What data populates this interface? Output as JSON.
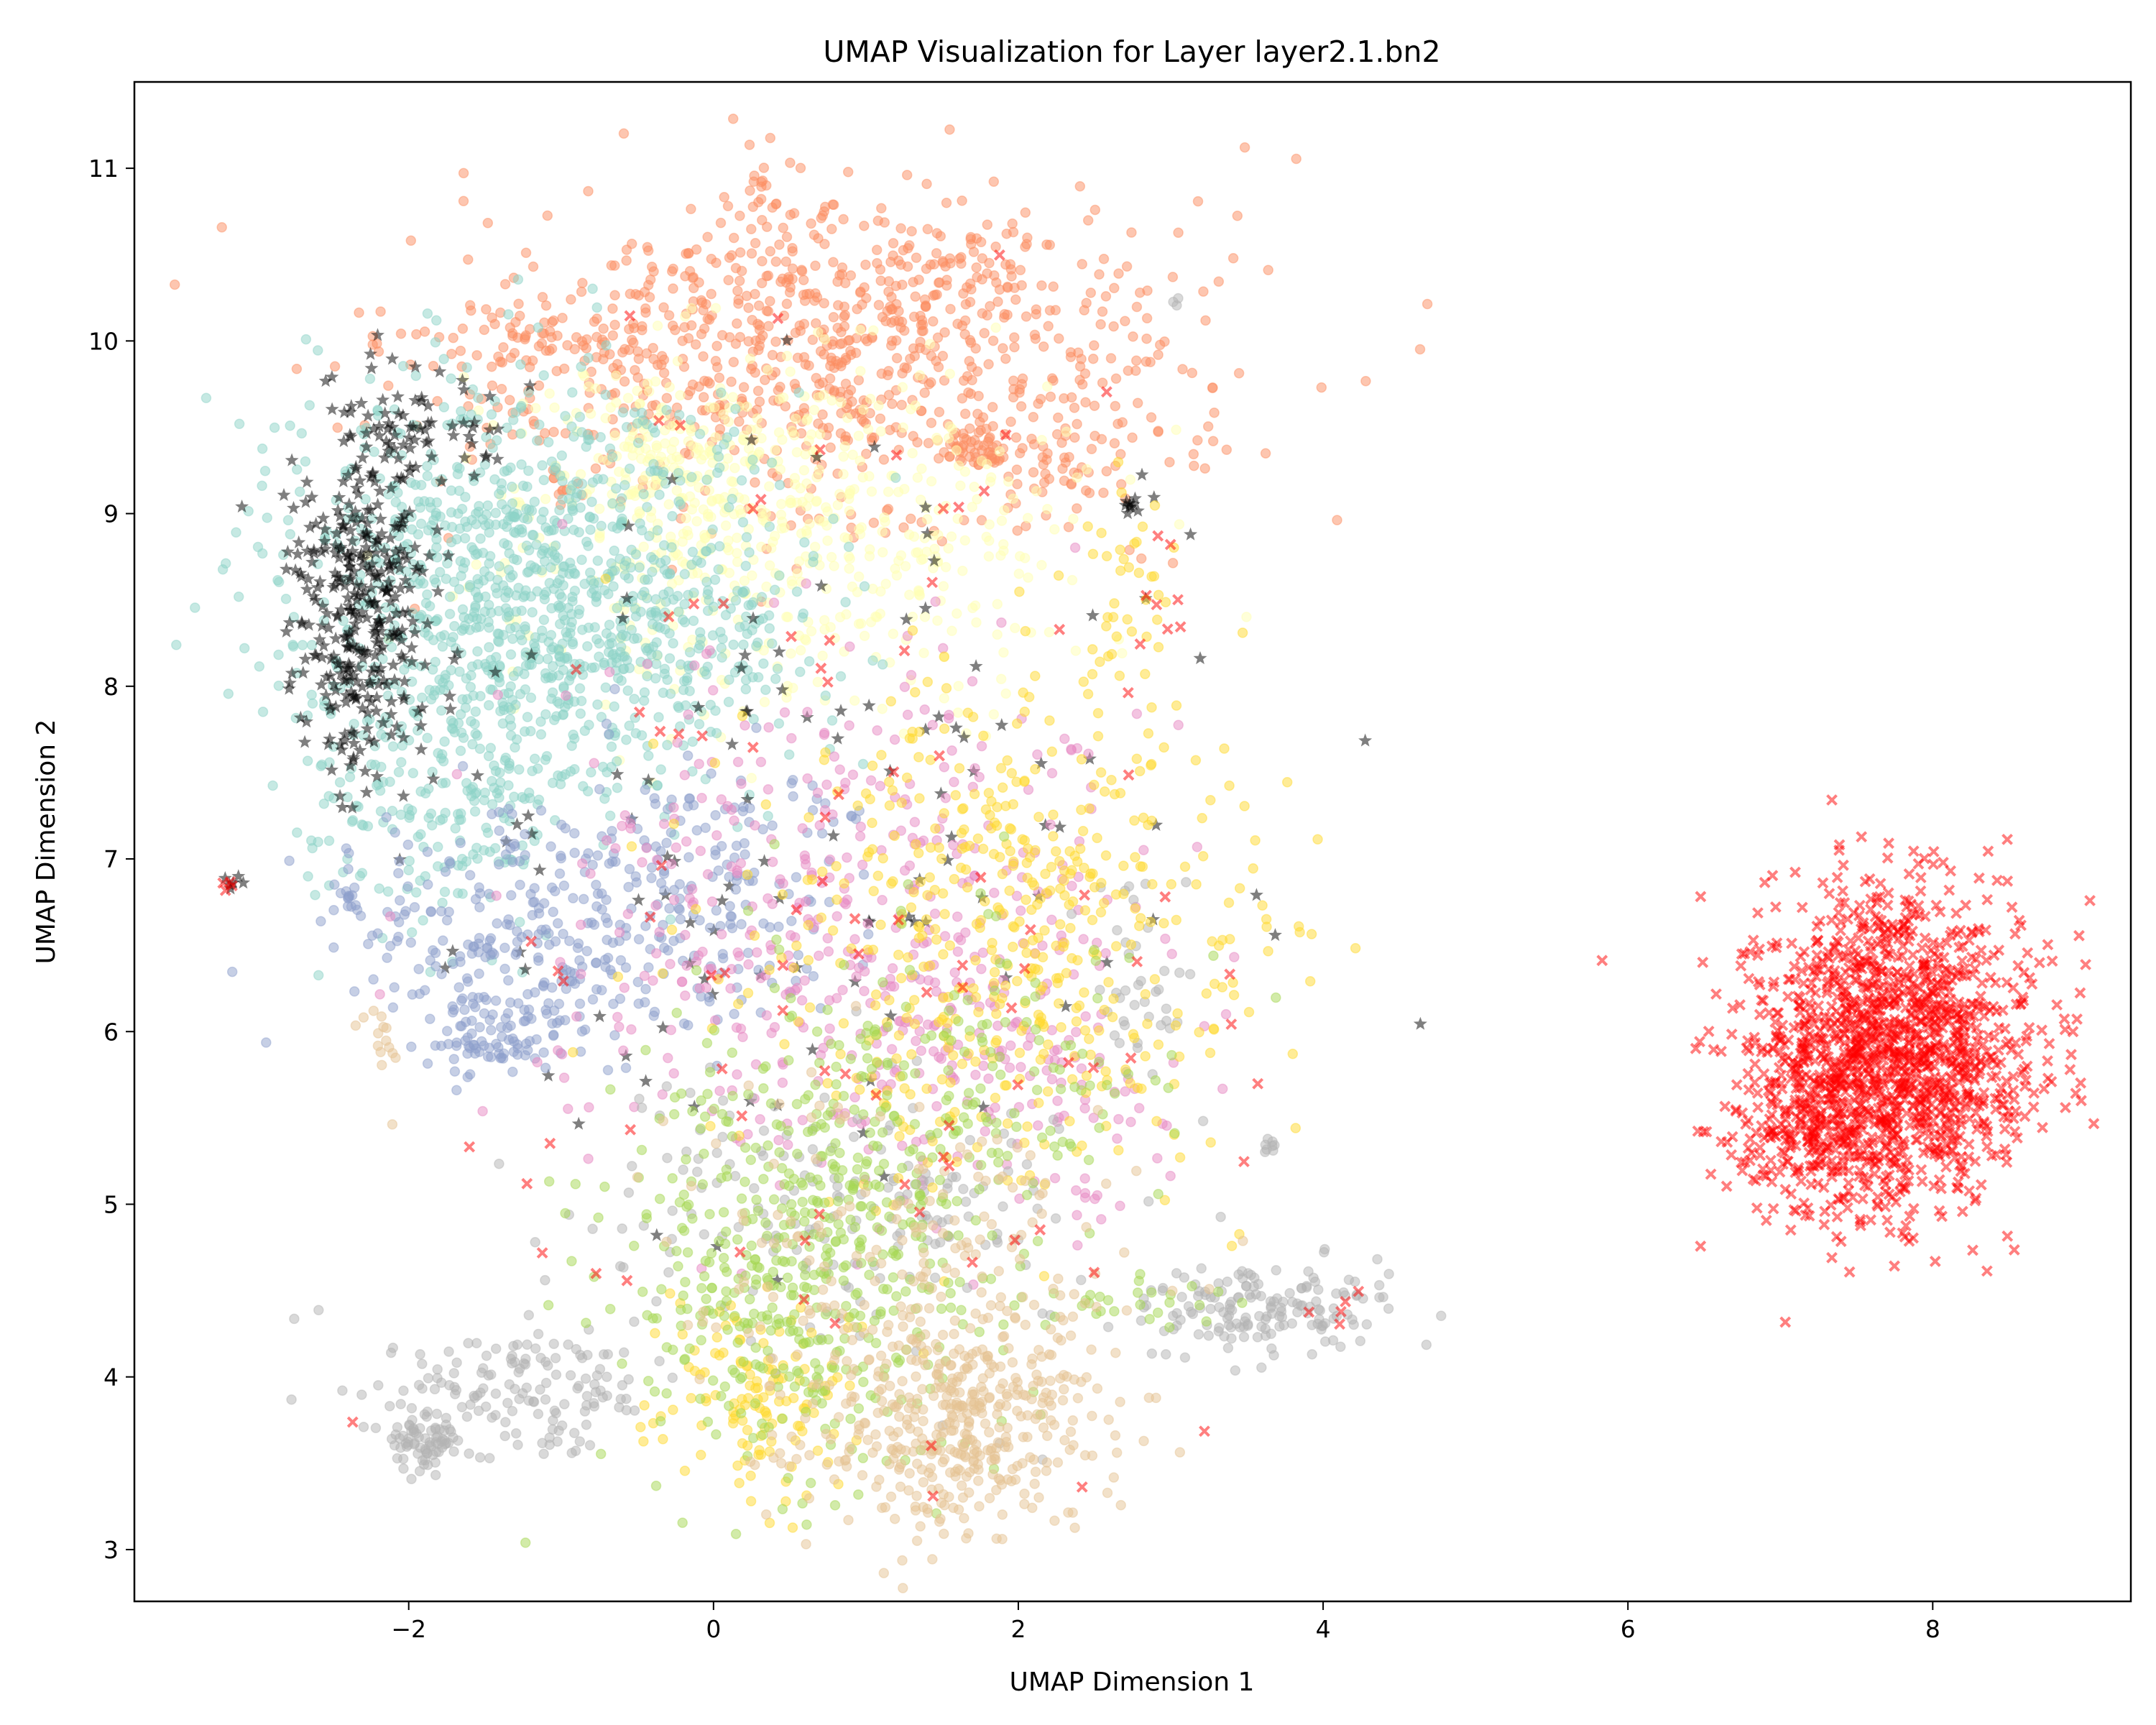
{
  "chart_data": {
    "type": "scatter",
    "title": "UMAP Visualization for Layer layer2.1.bn2",
    "xlabel": "UMAP Dimension 1",
    "ylabel": "UMAP Dimension 2",
    "xlim": [
      -3.8,
      9.3
    ],
    "ylim": [
      2.7,
      11.5
    ],
    "xticks": [
      -2,
      0,
      2,
      4,
      6,
      8
    ],
    "yticks": [
      3,
      4,
      5,
      6,
      7,
      8,
      9,
      10,
      11
    ],
    "xtick_labels": [
      "−2",
      "0",
      "2",
      "4",
      "6",
      "8"
    ],
    "ytick_labels": [
      "3",
      "4",
      "5",
      "6",
      "7",
      "8",
      "9",
      "10",
      "11"
    ],
    "grid": false,
    "legend": "none",
    "marker_alpha": 0.5,
    "series": [
      {
        "color": "#fc8d62",
        "marker": "circle",
        "clusters": [
          {
            "center": [
              0.6,
              9.8
            ],
            "spread": [
              1.3,
              0.45
            ],
            "points": 700
          },
          {
            "center": [
              1.2,
              10.3
            ],
            "spread": [
              0.8,
              0.3
            ],
            "points": 220
          },
          {
            "center": [
              1.75,
              9.4
            ],
            "spread": [
              0.12,
              0.08
            ],
            "points": 50
          },
          {
            "center": [
              0.35,
              10.95
            ],
            "spread": [
              0.08,
              0.08
            ],
            "points": 12
          },
          {
            "center": [
              -1.2,
              10.0
            ],
            "spread": [
              0.35,
              0.12
            ],
            "points": 40
          },
          {
            "center": [
              2.3,
              9.3
            ],
            "spread": [
              0.2,
              0.2
            ],
            "points": 30
          }
        ]
      },
      {
        "color": "#ffffb3",
        "marker": "circle",
        "clusters": [
          {
            "center": [
              0.5,
              8.9
            ],
            "spread": [
              0.9,
              0.55
            ],
            "points": 500
          },
          {
            "center": [
              -0.3,
              9.3
            ],
            "spread": [
              0.5,
              0.3
            ],
            "points": 150
          }
        ]
      },
      {
        "color": "#8dd3c7",
        "marker": "circle",
        "clusters": [
          {
            "center": [
              -1.3,
              8.6
            ],
            "spread": [
              0.75,
              0.6
            ],
            "points": 900
          },
          {
            "center": [
              -1.8,
              7.4
            ],
            "spread": [
              0.45,
              0.4
            ],
            "points": 200
          },
          {
            "center": [
              -0.3,
              8.3
            ],
            "spread": [
              0.5,
              0.4
            ],
            "points": 200
          }
        ]
      },
      {
        "color": "#000000",
        "marker": "star",
        "clusters": [
          {
            "center": [
              -2.3,
              8.4
            ],
            "spread": [
              0.22,
              0.5
            ],
            "points": 350
          },
          {
            "center": [
              -1.9,
              9.5
            ],
            "spread": [
              0.3,
              0.15
            ],
            "points": 60
          },
          {
            "center": [
              0.4,
              7.5
            ],
            "spread": [
              1.5,
              1.2
            ],
            "points": 120
          },
          {
            "center": [
              -3.15,
              6.86
            ],
            "spread": [
              0.03,
              0.02
            ],
            "points": 6
          },
          {
            "center": [
              2.75,
              9.05
            ],
            "spread": [
              0.05,
              0.03
            ],
            "points": 10
          }
        ]
      },
      {
        "color": "#8da0cb",
        "marker": "circle",
        "clusters": [
          {
            "center": [
              -1.0,
              6.5
            ],
            "spread": [
              0.7,
              0.35
            ],
            "points": 300
          },
          {
            "center": [
              -1.5,
              6.0
            ],
            "spread": [
              0.2,
              0.12
            ],
            "points": 70
          },
          {
            "center": [
              -2.4,
              6.75
            ],
            "spread": [
              0.06,
              0.06
            ],
            "points": 15
          },
          {
            "center": [
              0.0,
              7.0
            ],
            "spread": [
              0.6,
              0.4
            ],
            "points": 120
          }
        ]
      },
      {
        "color": "#e78ac3",
        "marker": "circle",
        "clusters": [
          {
            "center": [
              0.8,
              6.7
            ],
            "spread": [
              1.0,
              0.75
            ],
            "points": 400
          },
          {
            "center": [
              1.9,
              5.8
            ],
            "spread": [
              0.7,
              0.5
            ],
            "points": 140
          }
        ]
      },
      {
        "color": "#b3b3b3",
        "marker": "circle",
        "clusters": [
          {
            "center": [
              3.7,
              4.4
            ],
            "spread": [
              0.35,
              0.12
            ],
            "points": 120
          },
          {
            "center": [
              3.2,
              4.35
            ],
            "spread": [
              0.3,
              0.12
            ],
            "points": 40
          },
          {
            "center": [
              -1.4,
              3.9
            ],
            "spread": [
              0.5,
              0.2
            ],
            "points": 160
          },
          {
            "center": [
              -1.9,
              3.6
            ],
            "spread": [
              0.12,
              0.08
            ],
            "points": 60
          },
          {
            "center": [
              2.8,
              6.4
            ],
            "spread": [
              0.15,
              0.3
            ],
            "points": 40
          },
          {
            "center": [
              3.65,
              5.35
            ],
            "spread": [
              0.04,
              0.04
            ],
            "points": 8
          },
          {
            "center": [
              3.05,
              10.22
            ],
            "spread": [
              0.02,
              0.02
            ],
            "points": 3
          },
          {
            "center": [
              0.9,
              5.0
            ],
            "spread": [
              0.9,
              0.4
            ],
            "points": 180
          }
        ]
      },
      {
        "color": "#ffd92f",
        "marker": "circle",
        "clusters": [
          {
            "center": [
              1.9,
              6.6
            ],
            "spread": [
              0.85,
              0.75
            ],
            "points": 500
          },
          {
            "center": [
              2.7,
              8.4
            ],
            "spread": [
              0.2,
              0.4
            ],
            "points": 40
          },
          {
            "center": [
              0.3,
              3.9
            ],
            "spread": [
              0.35,
              0.3
            ],
            "points": 130
          }
        ]
      },
      {
        "color": "#a6d854",
        "marker": "circle",
        "clusters": [
          {
            "center": [
              0.5,
              4.6
            ],
            "spread": [
              0.65,
              0.6
            ],
            "points": 450
          },
          {
            "center": [
              1.3,
              5.6
            ],
            "spread": [
              0.8,
              0.5
            ],
            "points": 200
          },
          {
            "center": [
              2.7,
              4.4
            ],
            "spread": [
              0.3,
              0.08
            ],
            "points": 25
          }
        ]
      },
      {
        "color": "#e5c494",
        "marker": "circle",
        "clusters": [
          {
            "center": [
              1.6,
              3.7
            ],
            "spread": [
              0.45,
              0.3
            ],
            "points": 400
          },
          {
            "center": [
              1.3,
              4.6
            ],
            "spread": [
              0.7,
              0.5
            ],
            "points": 200
          },
          {
            "center": [
              -2.15,
              6.0
            ],
            "spread": [
              0.07,
              0.12
            ],
            "points": 15
          }
        ]
      },
      {
        "color": "#ff0000",
        "marker": "cross",
        "clusters": [
          {
            "center": [
              7.75,
              5.9
            ],
            "spread": [
              0.45,
              0.45
            ],
            "points": 1300
          },
          {
            "center": [
              7.2,
              5.5
            ],
            "spread": [
              0.3,
              0.3
            ],
            "points": 250
          },
          {
            "center": [
              1.0,
              7.0
            ],
            "spread": [
              1.3,
              1.8
            ],
            "points": 100
          },
          {
            "center": [
              -3.2,
              6.85
            ],
            "spread": [
              0.02,
              0.02
            ],
            "points": 4
          },
          {
            "center": [
              4.0,
              4.4
            ],
            "spread": [
              0.1,
              0.07
            ],
            "points": 5
          },
          {
            "center": [
              2.9,
              8.5
            ],
            "spread": [
              0.08,
              0.25
            ],
            "points": 8
          }
        ]
      }
    ]
  }
}
